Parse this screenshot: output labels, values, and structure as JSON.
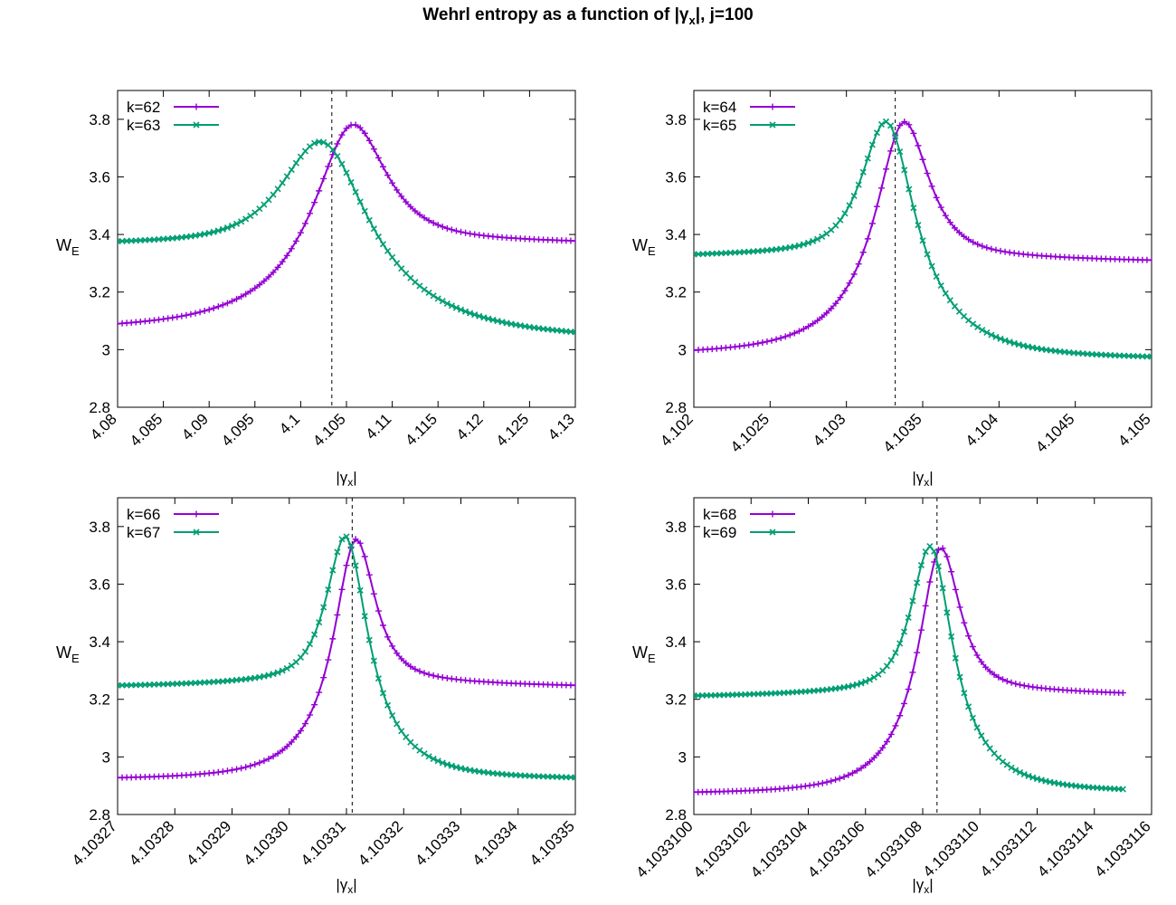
{
  "figure": {
    "title_main": "Wehrl entropy as a function of |γ",
    "title_sub": "x",
    "title_end": "|,  j=100",
    "xlabel_main": "|γ",
    "xlabel_sub": "x",
    "xlabel_end": "|",
    "ylabel_main": "W",
    "ylabel_sub": "E"
  },
  "colors": {
    "series_a": "#9400d3",
    "series_b": "#009e73",
    "axis": "#000000",
    "ref_line": "#000000"
  },
  "chart_data": [
    {
      "type": "line",
      "xlim": [
        4.08,
        4.13
      ],
      "ylim": [
        2.8,
        3.9
      ],
      "xticks": [
        4.08,
        4.085,
        4.09,
        4.095,
        4.1,
        4.105,
        4.11,
        4.115,
        4.12,
        4.125,
        4.13
      ],
      "xtick_labels": [
        "4.08",
        "4.085",
        "4.09",
        "4.095",
        "4.1",
        "4.105",
        "4.11",
        "4.115",
        "4.12",
        "4.125",
        "4.13"
      ],
      "yticks": [
        2.8,
        3.0,
        3.2,
        3.4,
        3.6,
        3.8
      ],
      "ytick_labels": [
        "2.8",
        "3",
        "3.2",
        "3.4",
        "3.6",
        "3.8"
      ],
      "ref_x": 4.1034,
      "x_range": [
        4.08,
        4.13
      ],
      "legend_position": "top-left",
      "series": [
        {
          "name": "k=62",
          "marker": "plus",
          "baseline_left": 3.065,
          "baseline_right": 3.36,
          "peak": 3.78,
          "peak_x": 4.1055,
          "width": 0.005
        },
        {
          "name": "k=63",
          "marker": "cross",
          "baseline_left": 3.355,
          "baseline_right": 3.03,
          "peak": 3.72,
          "peak_x": 4.1025,
          "width": 0.006
        }
      ]
    },
    {
      "type": "line",
      "xlim": [
        4.102,
        4.105
      ],
      "ylim": [
        2.8,
        3.9
      ],
      "xticks": [
        4.102,
        4.1025,
        4.103,
        4.1035,
        4.104,
        4.1045,
        4.105
      ],
      "xtick_labels": [
        "4.102",
        "4.1025",
        "4.103",
        "4.1035",
        "4.104",
        "4.1045",
        "4.105"
      ],
      "yticks": [
        2.8,
        3.0,
        3.2,
        3.4,
        3.6,
        3.8
      ],
      "ytick_labels": [
        "2.8",
        "3",
        "3.2",
        "3.4",
        "3.6",
        "3.8"
      ],
      "ref_x": 4.10332,
      "x_range": [
        4.102,
        4.105
      ],
      "legend_position": "top-left",
      "series": [
        {
          "name": "k=64",
          "marker": "plus",
          "baseline_left": 2.98,
          "baseline_right": 3.3,
          "peak": 3.79,
          "peak_x": 4.10337,
          "width": 0.00022
        },
        {
          "name": "k=65",
          "marker": "cross",
          "baseline_left": 3.315,
          "baseline_right": 2.965,
          "peak": 3.79,
          "peak_x": 4.10327,
          "width": 0.00022
        }
      ]
    },
    {
      "type": "line",
      "xlim": [
        4.10327,
        4.10335
      ],
      "ylim": [
        2.8,
        3.9
      ],
      "xticks": [
        4.10327,
        4.10328,
        4.10329,
        4.1033,
        4.10331,
        4.10332,
        4.10333,
        4.10334,
        4.10335
      ],
      "xtick_labels": [
        "4.10327",
        "4.10328",
        "4.10329",
        "4.10330",
        "4.10331",
        "4.10332",
        "4.10333",
        "4.10334",
        "4.10335"
      ],
      "yticks": [
        2.8,
        3.0,
        3.2,
        3.4,
        3.6,
        3.8
      ],
      "ytick_labels": [
        "2.8",
        "3",
        "3.2",
        "3.4",
        "3.6",
        "3.8"
      ],
      "ref_x": 4.103311,
      "x_range": [
        4.10327,
        4.10335
      ],
      "legend_position": "top-left",
      "series": [
        {
          "name": "k=66",
          "marker": "plus",
          "baseline_left": 2.92,
          "baseline_right": 3.24,
          "peak": 3.755,
          "peak_x": 4.1033115,
          "width": 4.5e-06
        },
        {
          "name": "k=67",
          "marker": "cross",
          "baseline_left": 3.24,
          "baseline_right": 2.92,
          "peak": 3.765,
          "peak_x": 4.10331,
          "width": 4.5e-06
        }
      ]
    },
    {
      "type": "line",
      "xlim": [
        4.10331,
        4.1033116
      ],
      "ylim": [
        2.8,
        3.9
      ],
      "xticks": [
        4.10331,
        4.1033102,
        4.1033104,
        4.1033106,
        4.1033108,
        4.103311,
        4.1033112,
        4.1033114,
        4.1033116
      ],
      "xtick_labels": [
        "4.1033100",
        "4.1033102",
        "4.1033104",
        "4.1033106",
        "4.1033108",
        "4.1033110",
        "4.1033112",
        "4.1033114",
        "4.1033116"
      ],
      "yticks": [
        2.8,
        3.0,
        3.2,
        3.4,
        3.6,
        3.8
      ],
      "ytick_labels": [
        "2.8",
        "3",
        "3.2",
        "3.4",
        "3.6",
        "3.8"
      ],
      "ref_x": 4.10331085,
      "x_range": [
        4.10331,
        4.1033115
      ],
      "legend_position": "top-left",
      "series": [
        {
          "name": "k=68",
          "marker": "plus",
          "baseline_left": 2.87,
          "baseline_right": 3.21,
          "peak": 3.725,
          "peak_x": 4.10331086,
          "width": 9e-08
        },
        {
          "name": "k=69",
          "marker": "cross",
          "baseline_left": 3.205,
          "baseline_right": 2.875,
          "peak": 3.73,
          "peak_x": 4.10331083,
          "width": 9e-08
        }
      ]
    }
  ]
}
